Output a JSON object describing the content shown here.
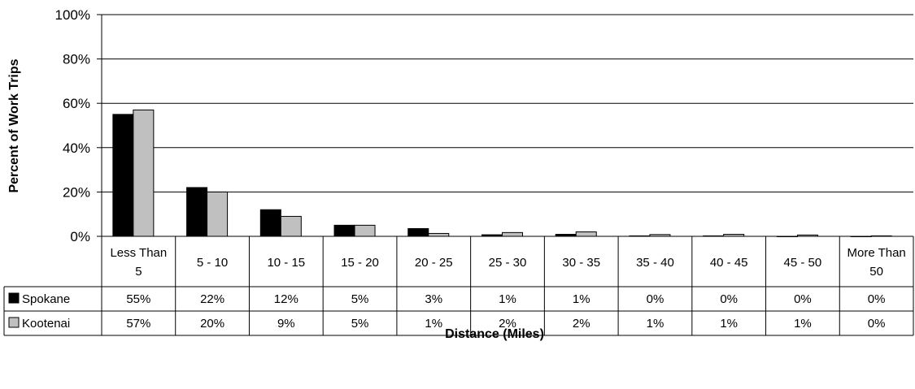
{
  "chart_data": {
    "type": "bar",
    "title": "",
    "xlabel": "Distance (Miles)",
    "ylabel": "Percent  of Work Trips",
    "ylim": [
      0,
      1
    ],
    "yticks": [
      "0%",
      "20%",
      "40%",
      "60%",
      "80%",
      "100%"
    ],
    "grid": true,
    "legend": "data-table",
    "categories": [
      [
        "Less Than",
        "5"
      ],
      [
        "5 - 10"
      ],
      [
        "10 - 15"
      ],
      [
        "15 - 20"
      ],
      [
        "20 - 25"
      ],
      [
        "25 - 30"
      ],
      [
        "30 - 35"
      ],
      [
        "35 - 40"
      ],
      [
        "40 - 45"
      ],
      [
        "45 - 50"
      ],
      [
        "More Than",
        "50"
      ]
    ],
    "series": [
      {
        "name": "Spokane",
        "color": "#000000",
        "values": [
          0.55,
          0.22,
          0.12,
          0.05,
          0.035,
          0.007,
          0.009,
          0.002,
          0.002,
          0.0,
          0.0
        ],
        "labels": [
          "55%",
          "22%",
          "12%",
          "5%",
          "3%",
          "1%",
          "1%",
          "0%",
          "0%",
          "0%",
          "0%"
        ]
      },
      {
        "name": "Kootenai",
        "color": "#c0c0c0",
        "values": [
          0.57,
          0.2,
          0.09,
          0.05,
          0.013,
          0.017,
          0.02,
          0.008,
          0.009,
          0.006,
          0.002
        ],
        "labels": [
          "57%",
          "20%",
          "9%",
          "5%",
          "1%",
          "2%",
          "2%",
          "1%",
          "1%",
          "1%",
          "0%"
        ]
      }
    ]
  }
}
